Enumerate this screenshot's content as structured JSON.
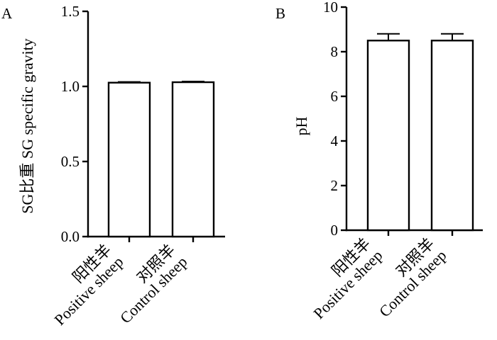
{
  "chart_data": [
    {
      "type": "bar",
      "panel_label": "A",
      "title": "",
      "ylabel": "SG比重  SG specific gravity",
      "ylim": [
        0,
        1.5
      ],
      "yticks": [
        "0.0",
        "0.5",
        "1.0",
        "1.5"
      ],
      "categories": [
        {
          "line1": "阳性羊",
          "line2": "Positive sheep"
        },
        {
          "line1": "对照羊",
          "line2": "Control sheep"
        }
      ],
      "values": [
        1.025,
        1.028
      ],
      "errors": [
        0.005,
        0.005
      ]
    },
    {
      "type": "bar",
      "panel_label": "B",
      "title": "",
      "ylabel": "pH",
      "ylim": [
        0,
        10
      ],
      "yticks": [
        "0",
        "2",
        "4",
        "6",
        "8",
        "10"
      ],
      "categories": [
        {
          "line1": "阳性羊",
          "line2": "Positive sheep"
        },
        {
          "line1": "对照羊",
          "line2": "Control sheep"
        }
      ],
      "values": [
        8.5,
        8.5
      ],
      "errors": [
        0.3,
        0.3
      ]
    }
  ]
}
